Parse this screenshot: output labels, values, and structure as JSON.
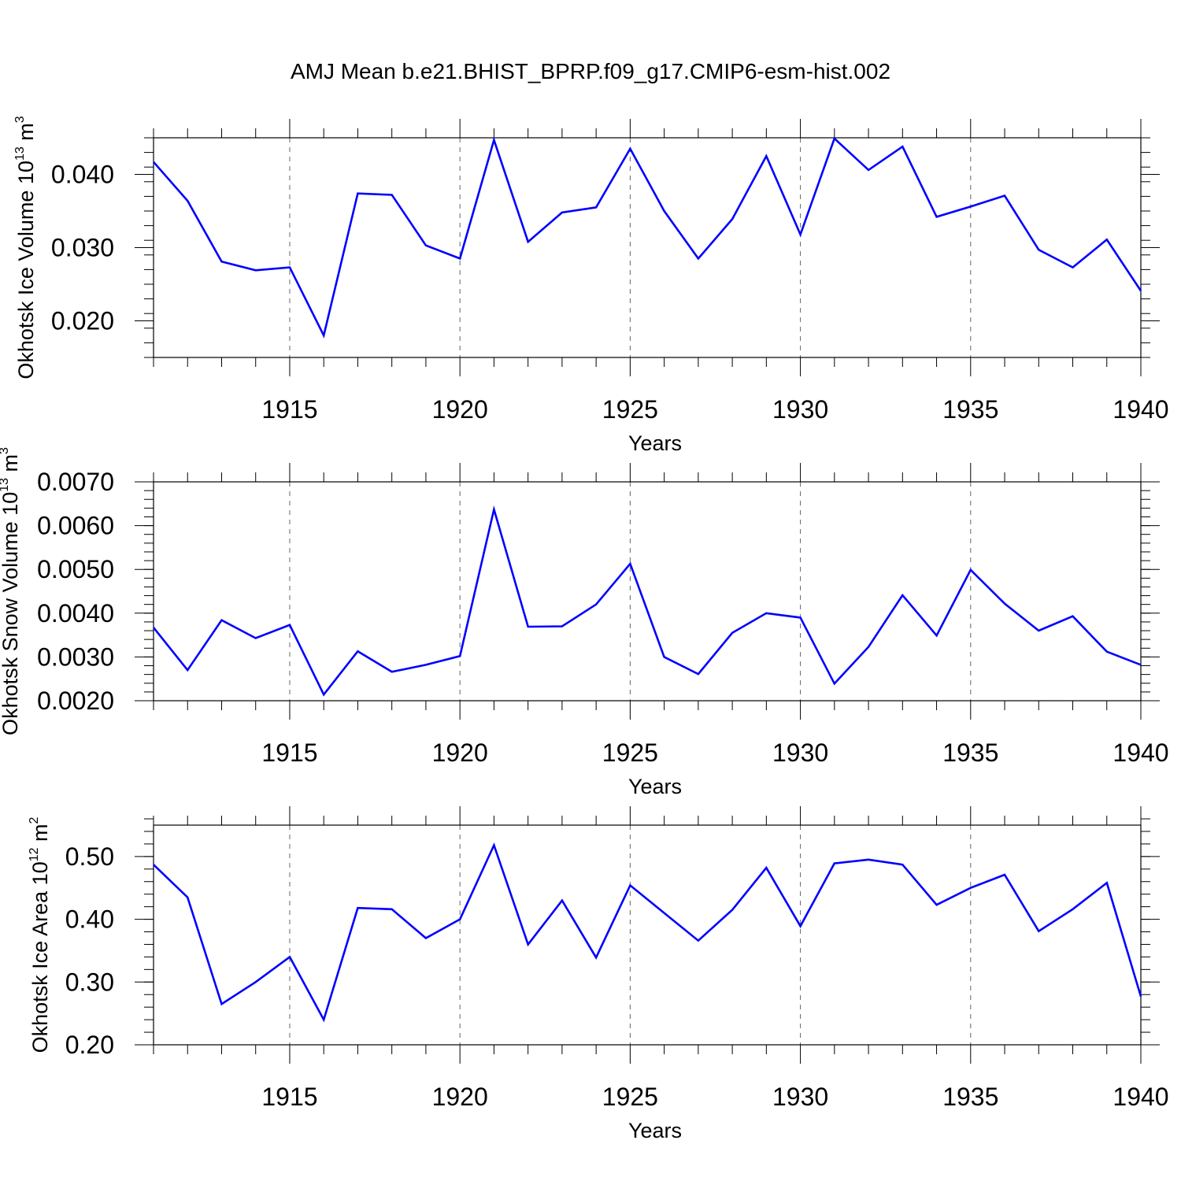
{
  "title": "AMJ Mean b.e21.BHIST_BPRP.f09_g17.CMIP6-esm-hist.002",
  "colors": {
    "line": "#0000ff",
    "axis": "#000000",
    "grid": "#666666",
    "background": "#ffffff"
  },
  "chart_data": [
    {
      "type": "line",
      "name": "ice-volume",
      "ylabel": "Okhotsk Ice Volume 10",
      "ylabel_exp": "13",
      "ylabel_unit": "m",
      "ylabel_unit_exp": "3",
      "xlabel": "Years",
      "xlim": [
        1911,
        1940
      ],
      "ylim": [
        0.015,
        0.045
      ],
      "x_ticks": [
        1915,
        1920,
        1925,
        1930,
        1935,
        1940
      ],
      "x_tick_labels": [
        "1915",
        "1920",
        "1925",
        "1930",
        "1935",
        "1940"
      ],
      "y_ticks": [
        0.02,
        0.03,
        0.04
      ],
      "y_tick_labels": [
        "0.020",
        "0.030",
        "0.040"
      ],
      "y_minor_step": 0.002,
      "grid": "dashed vertical at major x ticks",
      "series": [
        {
          "name": "Okhotsk Ice Volume",
          "x": [
            1911,
            1912,
            1913,
            1914,
            1915,
            1916,
            1917,
            1918,
            1919,
            1920,
            1921,
            1922,
            1923,
            1924,
            1925,
            1926,
            1927,
            1928,
            1929,
            1930,
            1931,
            1932,
            1933,
            1934,
            1935,
            1936,
            1937,
            1938,
            1939,
            1940
          ],
          "values": [
            0.0417,
            0.0364,
            0.0281,
            0.0269,
            0.0273,
            0.018,
            0.0374,
            0.0372,
            0.0303,
            0.0285,
            0.0447,
            0.0308,
            0.0348,
            0.0355,
            0.0435,
            0.035,
            0.0285,
            0.0339,
            0.0425,
            0.0318,
            0.0449,
            0.0406,
            0.0438,
            0.0342,
            0.0356,
            0.0371,
            0.0297,
            0.0273,
            0.0311,
            0.0241
          ]
        }
      ]
    },
    {
      "type": "line",
      "name": "snow-volume",
      "ylabel": "Okhotsk Snow Volume 10",
      "ylabel_exp": "13",
      "ylabel_unit": "m",
      "ylabel_unit_exp": "3",
      "xlabel": "Years",
      "xlim": [
        1911,
        1940
      ],
      "ylim": [
        0.002,
        0.007
      ],
      "x_ticks": [
        1915,
        1920,
        1925,
        1930,
        1935,
        1940
      ],
      "x_tick_labels": [
        "1915",
        "1920",
        "1925",
        "1930",
        "1935",
        "1940"
      ],
      "y_ticks": [
        0.002,
        0.003,
        0.004,
        0.005,
        0.006,
        0.007
      ],
      "y_tick_labels": [
        "0.0020",
        "0.0030",
        "0.0040",
        "0.0050",
        "0.0060",
        "0.0070"
      ],
      "y_minor_step": 0.0002,
      "grid": "dashed vertical at major x ticks",
      "series": [
        {
          "name": "Okhotsk Snow Volume",
          "x": [
            1911,
            1912,
            1913,
            1914,
            1915,
            1916,
            1917,
            1918,
            1919,
            1920,
            1921,
            1922,
            1923,
            1924,
            1925,
            1926,
            1927,
            1928,
            1929,
            1930,
            1931,
            1932,
            1933,
            1934,
            1935,
            1936,
            1937,
            1938,
            1939,
            1940
          ],
          "values": [
            0.00367,
            0.0027,
            0.00384,
            0.00343,
            0.00373,
            0.00214,
            0.00313,
            0.00266,
            0.00282,
            0.00302,
            0.00637,
            0.00369,
            0.0037,
            0.0042,
            0.00513,
            0.003,
            0.00261,
            0.00355,
            0.004,
            0.0039,
            0.00239,
            0.00323,
            0.00441,
            0.00349,
            0.00499,
            0.00422,
            0.0036,
            0.00393,
            0.00312,
            0.00282
          ]
        }
      ]
    },
    {
      "type": "line",
      "name": "ice-area",
      "ylabel": "Okhotsk Ice Area 10",
      "ylabel_exp": "12",
      "ylabel_unit": "m",
      "ylabel_unit_exp": "2",
      "xlabel": "Years",
      "xlim": [
        1911,
        1940
      ],
      "ylim": [
        0.2,
        0.55
      ],
      "x_ticks": [
        1915,
        1920,
        1925,
        1930,
        1935,
        1940
      ],
      "x_tick_labels": [
        "1915",
        "1920",
        "1925",
        "1930",
        "1935",
        "1940"
      ],
      "y_ticks": [
        0.2,
        0.3,
        0.4,
        0.5
      ],
      "y_tick_labels": [
        "0.20",
        "0.30",
        "0.40",
        "0.50"
      ],
      "y_minor_step": 0.02,
      "grid": "dashed vertical at major x ticks",
      "series": [
        {
          "name": "Okhotsk Ice Area",
          "x": [
            1911,
            1912,
            1913,
            1914,
            1915,
            1916,
            1917,
            1918,
            1919,
            1920,
            1921,
            1922,
            1923,
            1924,
            1925,
            1926,
            1927,
            1928,
            1929,
            1930,
            1931,
            1932,
            1933,
            1934,
            1935,
            1936,
            1937,
            1938,
            1939,
            1940
          ],
          "values": [
            0.487,
            0.435,
            0.265,
            0.3,
            0.34,
            0.24,
            0.418,
            0.416,
            0.37,
            0.4,
            0.518,
            0.36,
            0.43,
            0.339,
            0.454,
            0.41,
            0.366,
            0.415,
            0.482,
            0.389,
            0.489,
            0.495,
            0.487,
            0.423,
            0.45,
            0.471,
            0.381,
            0.416,
            0.458,
            0.277
          ]
        }
      ]
    }
  ]
}
